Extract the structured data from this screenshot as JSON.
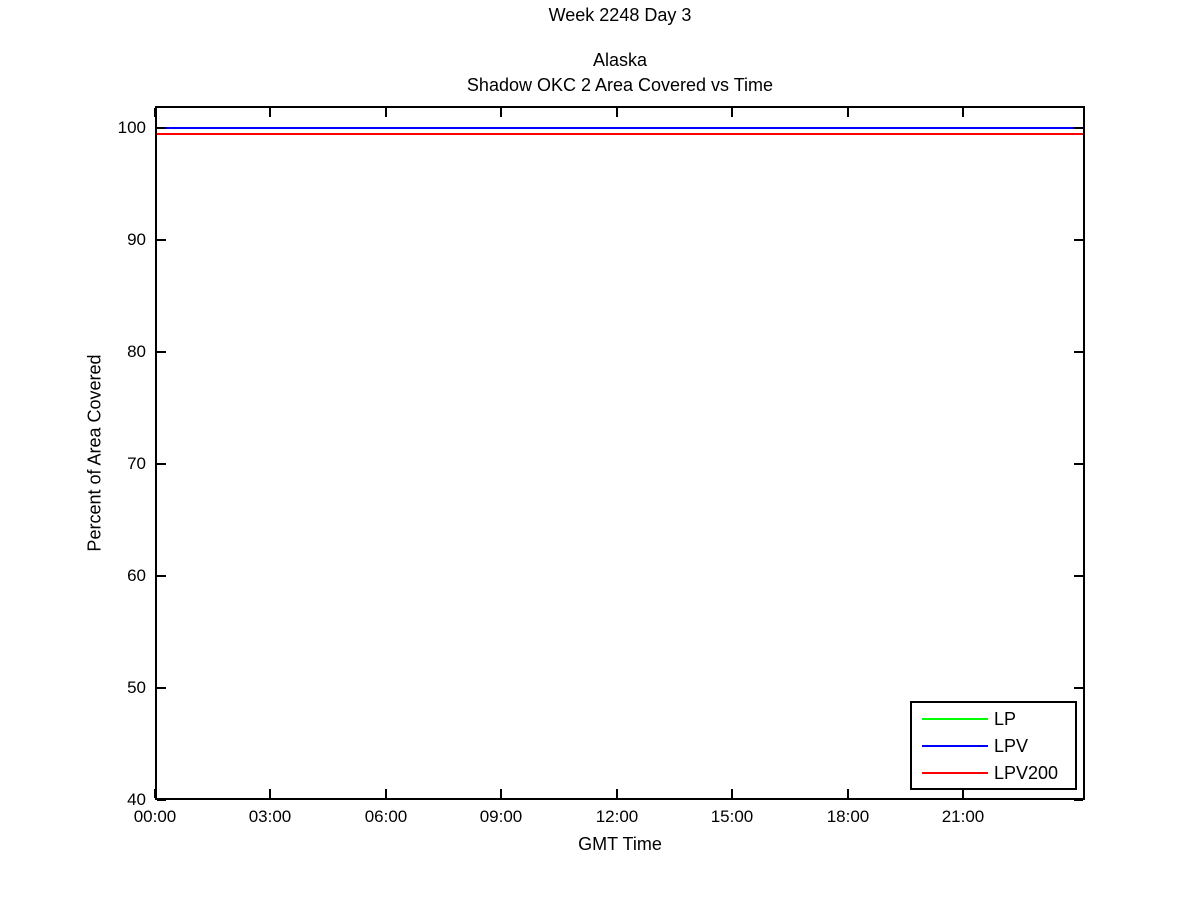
{
  "chart_data": {
    "type": "line",
    "suptitle": "Week 2248 Day 3",
    "title_lines": [
      "Alaska",
      "Shadow OKC 2 Area Covered vs Time"
    ],
    "xlabel": "GMT Time",
    "ylabel": "Percent of Area Covered",
    "x_tick_labels": [
      "00:00",
      "03:00",
      "06:00",
      "09:00",
      "12:00",
      "15:00",
      "18:00",
      "21:00"
    ],
    "x_tick_hours": [
      0,
      3,
      6,
      9,
      12,
      15,
      18,
      21
    ],
    "xlim_hours": [
      0,
      24.16
    ],
    "y_ticks": [
      40,
      50,
      60,
      70,
      80,
      90,
      100
    ],
    "ylim": [
      40,
      102
    ],
    "grid": false,
    "axis_color": "#000000",
    "background_color": "#ffffff",
    "legend": {
      "position": "bottom-right-inside",
      "entries": [
        "LP",
        "LPV",
        "LPV200"
      ]
    },
    "series": [
      {
        "name": "LP",
        "color": "#00ff00",
        "constant_value": 100,
        "x_span_hours": [
          0,
          24.16
        ]
      },
      {
        "name": "LPV",
        "color": "#0000ff",
        "constant_value": 100,
        "x_span_hours": [
          0,
          24.16
        ]
      },
      {
        "name": "LPV200",
        "color": "#ff0000",
        "constant_value": 99.5,
        "x_span_hours": [
          0,
          24.16
        ]
      }
    ]
  }
}
